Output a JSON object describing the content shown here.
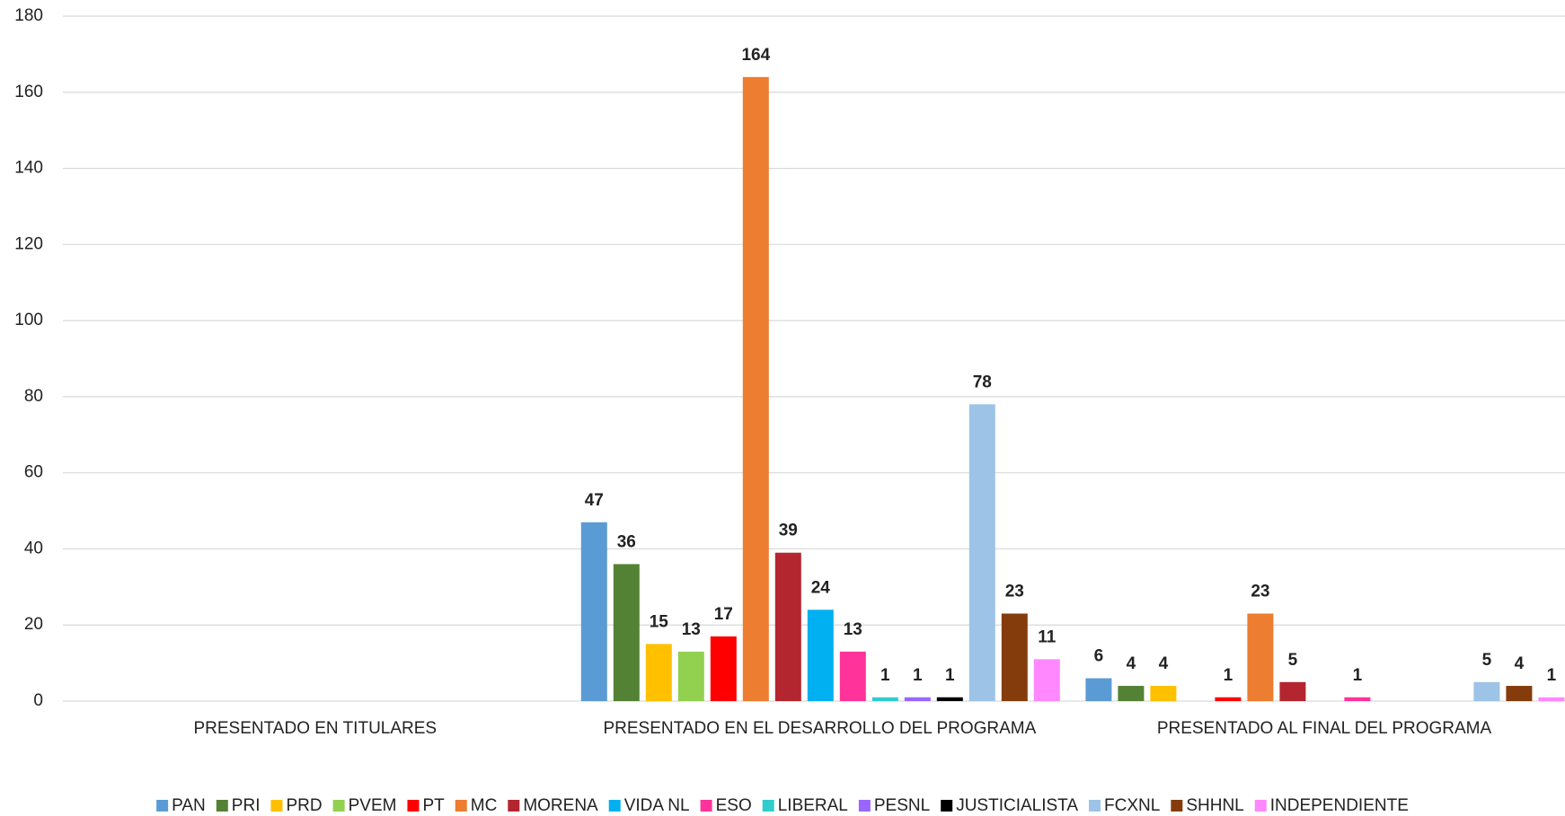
{
  "chart_data": {
    "type": "bar",
    "categories": [
      "PRESENTADO EN TITULARES",
      "PRESENTADO EN EL DESARROLLO DEL PROGRAMA",
      "PRESENTADO AL FINAL DEL PROGRAMA"
    ],
    "series": [
      {
        "name": "PAN",
        "color": "#5b9bd5",
        "values": [
          null,
          47,
          6
        ]
      },
      {
        "name": "PRI",
        "color": "#548235",
        "values": [
          null,
          36,
          4
        ]
      },
      {
        "name": "PRD",
        "color": "#ffc000",
        "values": [
          null,
          15,
          4
        ]
      },
      {
        "name": "PVEM",
        "color": "#92d050",
        "values": [
          null,
          13,
          null
        ]
      },
      {
        "name": "PT",
        "color": "#ff0000",
        "values": [
          null,
          17,
          1
        ]
      },
      {
        "name": "MC",
        "color": "#ed7d31",
        "values": [
          null,
          164,
          23
        ]
      },
      {
        "name": "MORENA",
        "color": "#b4262f",
        "values": [
          null,
          39,
          5
        ]
      },
      {
        "name": "VIDA NL",
        "color": "#00b0f0",
        "values": [
          null,
          24,
          null
        ]
      },
      {
        "name": "ESO",
        "color": "#ff3399",
        "values": [
          null,
          13,
          1
        ]
      },
      {
        "name": "LIBERAL",
        "color": "#33cccc",
        "values": [
          null,
          1,
          null
        ]
      },
      {
        "name": "PESNL",
        "color": "#9966ff",
        "values": [
          null,
          1,
          null
        ]
      },
      {
        "name": "JUSTICIALISTA",
        "color": "#000000",
        "values": [
          null,
          1,
          null
        ]
      },
      {
        "name": "FCXNL",
        "color": "#9dc3e6",
        "values": [
          null,
          78,
          5
        ]
      },
      {
        "name": "SHHNL",
        "color": "#843c0c",
        "values": [
          null,
          23,
          4
        ]
      },
      {
        "name": "INDEPENDIENTE",
        "color": "#ff88ff",
        "values": [
          null,
          11,
          1
        ]
      }
    ],
    "ylim": [
      0,
      180
    ],
    "yticks": [
      0,
      20,
      40,
      60,
      80,
      100,
      120,
      140,
      160,
      180
    ],
    "grid": true,
    "legend": "bottom"
  }
}
